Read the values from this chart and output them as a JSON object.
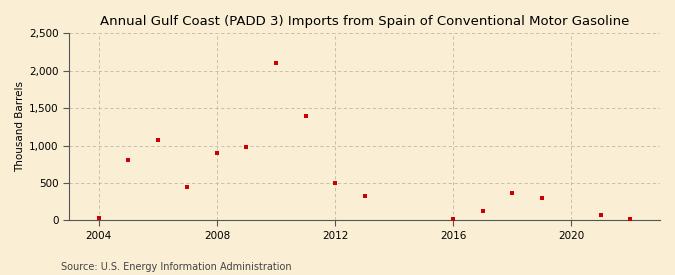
{
  "title": "Annual Gulf Coast (PADD 3) Imports from Spain of Conventional Motor Gasoline",
  "ylabel": "Thousand Barrels",
  "source": "Source: U.S. Energy Information Administration",
  "background_color": "#faefd4",
  "plot_bg_color": "#faefd4",
  "marker_color": "#cc0000",
  "years": [
    2004,
    2005,
    2006,
    2007,
    2008,
    2009,
    2010,
    2011,
    2012,
    2013,
    2016,
    2017,
    2018,
    2019,
    2021,
    2022
  ],
  "values": [
    30,
    800,
    1075,
    450,
    900,
    975,
    2100,
    1400,
    500,
    320,
    20,
    120,
    360,
    300,
    75,
    20
  ],
  "xlim": [
    2003.0,
    2023.0
  ],
  "ylim": [
    0,
    2500
  ],
  "yticks": [
    0,
    500,
    1000,
    1500,
    2000,
    2500
  ],
  "ytick_labels": [
    "0",
    "500",
    "1,000",
    "1,500",
    "2,000",
    "2,500"
  ],
  "xticks": [
    2004,
    2008,
    2012,
    2016,
    2020
  ],
  "vgrid_positions": [
    2004,
    2008,
    2012,
    2016,
    2020
  ],
  "title_fontsize": 9.5,
  "label_fontsize": 7.5,
  "tick_fontsize": 7.5,
  "source_fontsize": 7.0
}
